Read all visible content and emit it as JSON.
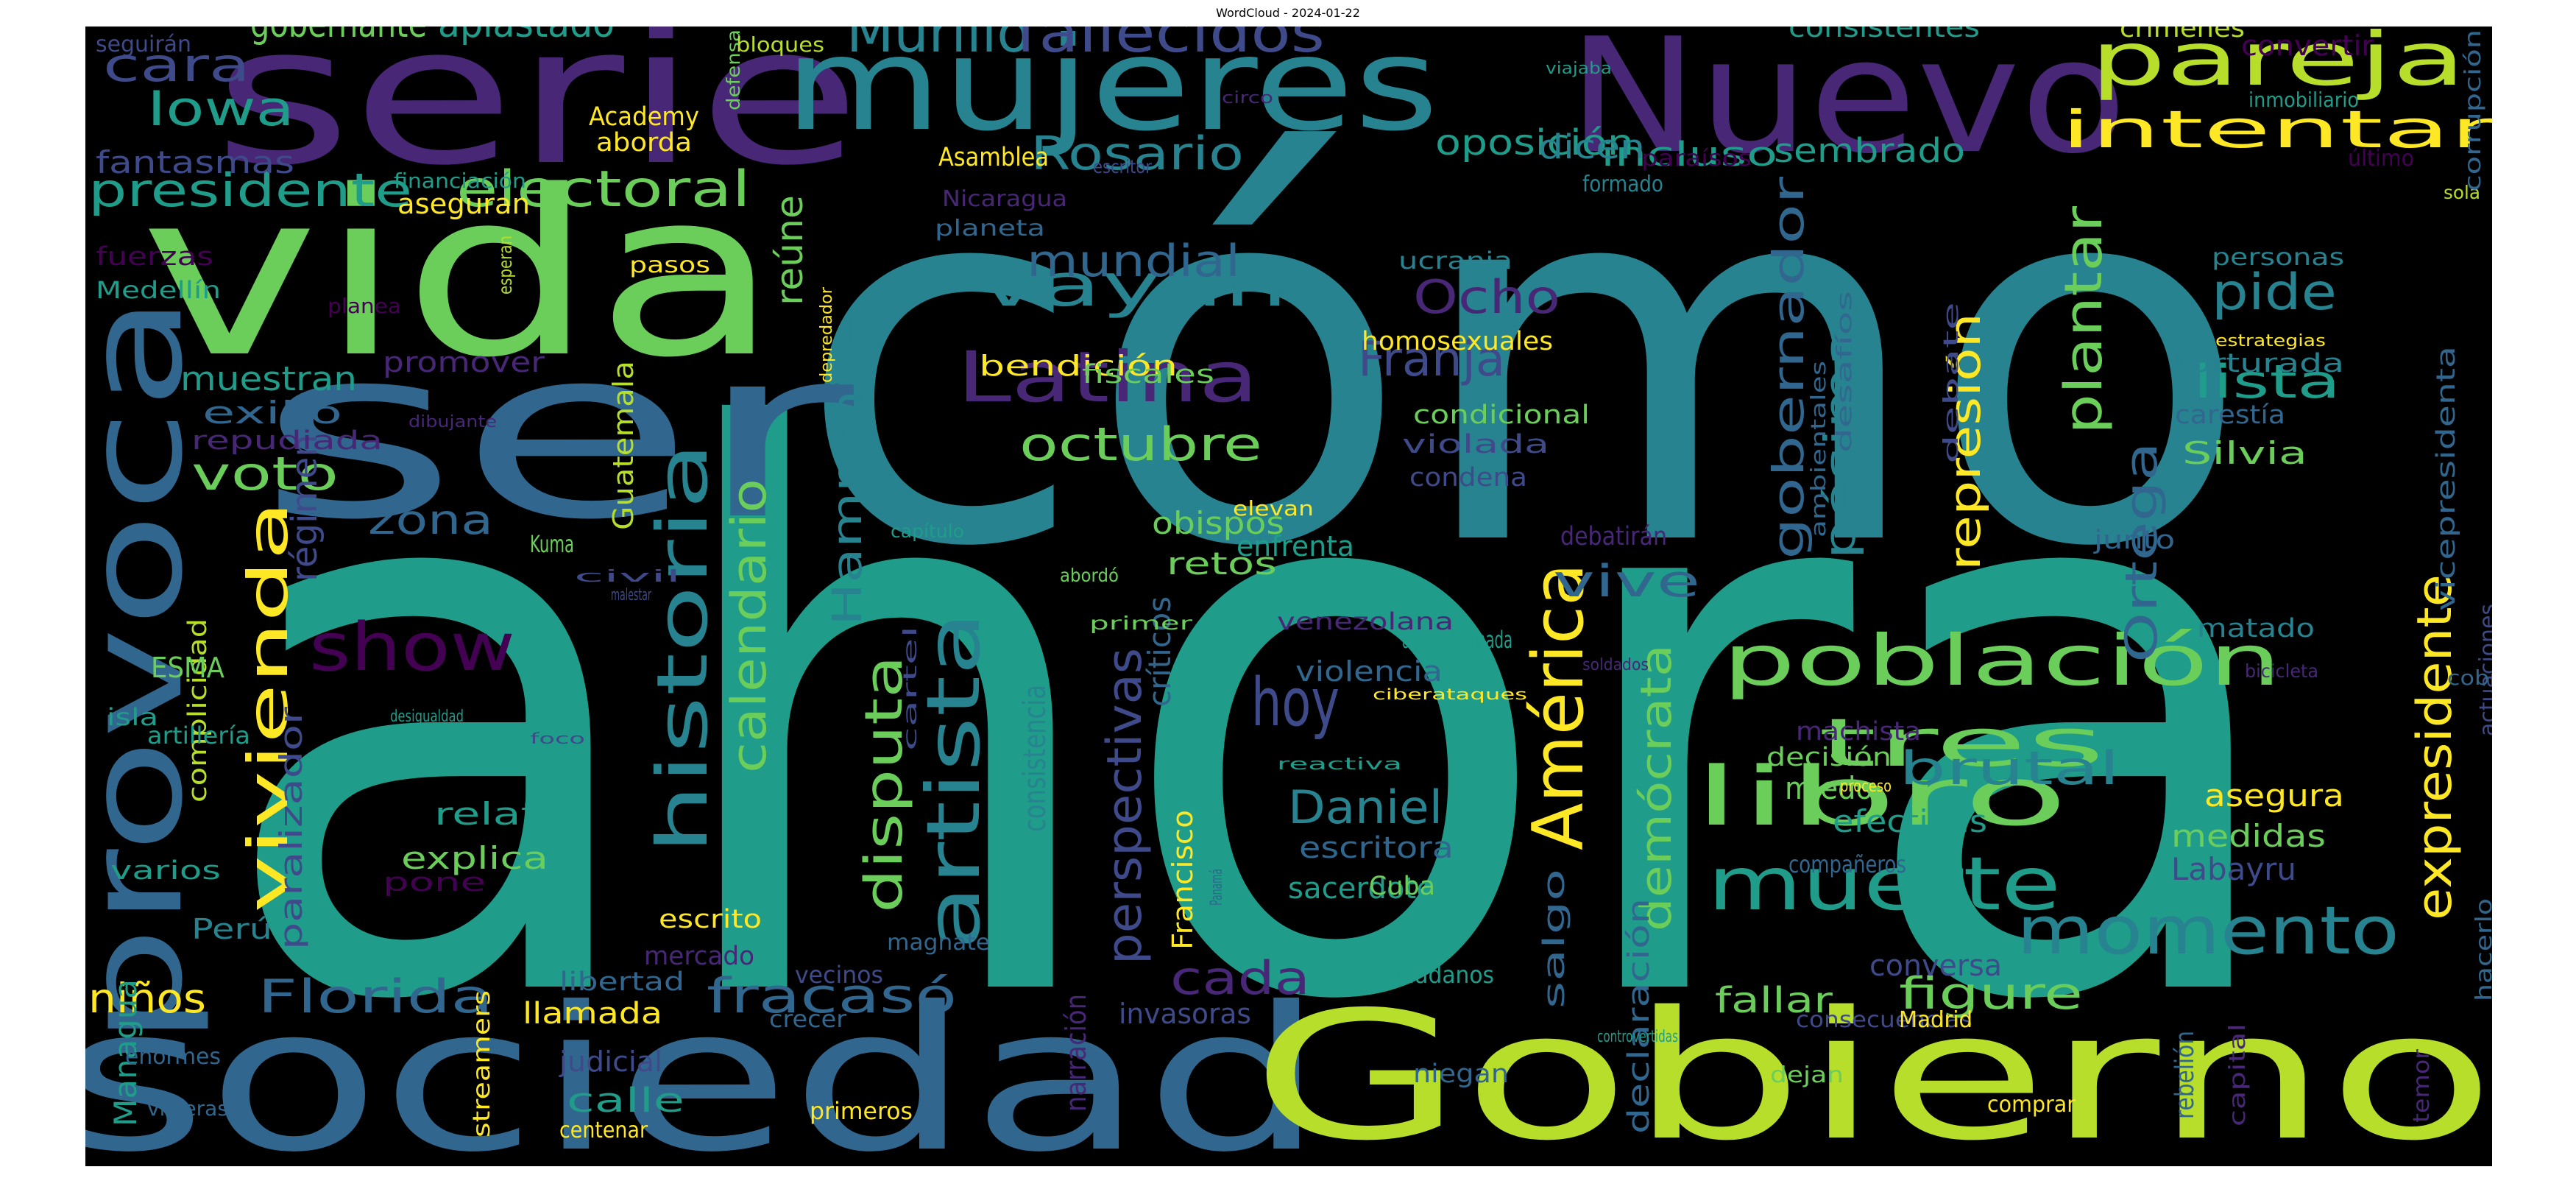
{
  "title": "WordCloud - 2024-01-22",
  "colors": {
    "background": "#000000",
    "c1": "#440154",
    "c2": "#482777",
    "c3": "#3f4a8a",
    "c4": "#31678e",
    "c5": "#26838f",
    "c6": "#1f9d8a",
    "c7": "#6cce5a",
    "c8": "#b6de2b",
    "c9": "#fee825"
  },
  "words": [
    "ahora",
    "cómo",
    "sociedad",
    "Gobierno",
    "ser",
    "vida",
    "serie",
    "mujeres",
    "Nuevo",
    "provoca",
    "pareja",
    "intentar",
    "historia",
    "artista",
    "población",
    "libro",
    "muerte",
    "América",
    "momento",
    "tres",
    "vivienda",
    "show",
    "hoy",
    "Latina",
    "vayan",
    "disputa",
    "perspectivas",
    "calendario",
    "expresidente",
    "plantar",
    "electoral",
    "presidente",
    "Murillo",
    "fallecidos",
    "Rosario",
    "Iowa",
    "cara",
    "gobernante",
    "aplastado",
    "oposición",
    "incluso",
    "sembrado",
    "mundial",
    "Ocho",
    "Franja",
    "pide",
    "lista",
    "octubre",
    "voto",
    "zona",
    "Hampshire",
    "Ortega",
    "represión",
    "demócrata",
    "gobernador",
    "pésimas",
    "brutal",
    "Daniel",
    "fracasó",
    "Florida",
    "niños",
    "cada",
    "figure",
    "fallar",
    "conversa",
    "vicepresidenta",
    "relata",
    "explica",
    "vive",
    "reúne",
    "muestran",
    "exilio",
    "fantasmas",
    "régimen",
    "consistencia",
    "críticos",
    "Francisco",
    "escritora",
    "sacerdotes",
    "Cuba",
    "asegura",
    "medidas",
    "Labayru",
    "miedo",
    "efectivas",
    "decisión",
    "declaración",
    "salgo",
    "retos",
    "obispos",
    "homosexuales",
    "condicional",
    "violada",
    "condena",
    "bendición",
    "fiscales",
    "Guatemala",
    "paralizador",
    "complicidad",
    "ESMA",
    "artillería",
    "isla",
    "varios",
    "Perú",
    "Managua",
    "enormes",
    "viajeras",
    "streamers",
    "judicial",
    "calle",
    "centenar",
    "primeros",
    "llamada",
    "libertad",
    "mercado",
    "magnate",
    "vecinos",
    "crecer",
    "narración",
    "invasoras",
    "niegan",
    "ciudadanos",
    "consecuencias",
    "Madrid",
    "dejan",
    "comprar",
    "rebelión",
    "capital",
    "temor",
    "hacerlo",
    "actuaciones",
    "cobran",
    "bicicleta",
    "matado",
    "junto",
    "Silvia",
    "carestía",
    "torturada",
    "estrategias",
    "personas",
    "sola",
    "último",
    "corrupción",
    "inmobiliario",
    "convertir",
    "crímenes",
    "consistentes",
    "viajaba",
    "circo",
    "defensa",
    "bloques",
    "seguirán",
    "Academy",
    "aborda",
    "Asamblea",
    "escritor",
    "financiación",
    "aseguran",
    "Nicaragua",
    "planeta",
    "formado",
    "paraísos",
    "dicen",
    "pasos",
    "esperan",
    "planea",
    "fuerzas",
    "Medellín",
    "promover",
    "repudiada",
    "dibujante",
    "depredador",
    "ucrania",
    "elevan",
    "capítulo",
    "Kuma",
    "venezolana",
    "primer",
    "civil",
    "malestar",
    "abordó",
    "enfrenta",
    "debatirán",
    "autogobernada",
    "violencia",
    "ciberataques",
    "soldados",
    "reactiva",
    "machista",
    "proceso",
    "controvertidas",
    "compañeros",
    "ambientales",
    "desafíos",
    "debate",
    "desigualdad",
    "foco",
    "cartel",
    "Panamá",
    "pone",
    "escrito"
  ]
}
